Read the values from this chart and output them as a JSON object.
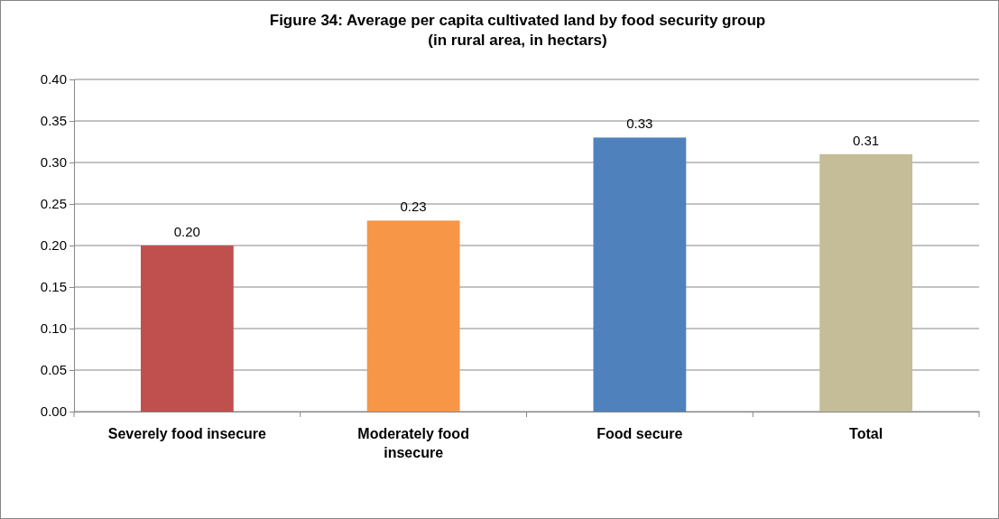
{
  "chart_data": {
    "type": "bar",
    "title": "Figure 34: Average per capita cultivated land by food security group (in rural area, in hectars)",
    "categories": [
      "Severely food insecure",
      "Moderately food insecure",
      "Food secure",
      "Total"
    ],
    "values": [
      0.2,
      0.23,
      0.33,
      0.31
    ],
    "colors": [
      "#c0504d",
      "#f79646",
      "#4f81bd",
      "#c4bd97"
    ],
    "ylim": [
      0,
      0.4
    ],
    "yticks": [
      {
        "value": 0,
        "label": "0.00"
      },
      {
        "value": 0.05,
        "label": "0.05"
      },
      {
        "value": 0.1,
        "label": "0.10"
      },
      {
        "value": 0.15,
        "label": "0.15"
      },
      {
        "value": 0.2,
        "label": "0.20"
      },
      {
        "value": 0.25,
        "label": "0.25"
      },
      {
        "value": 0.3,
        "label": "0.30"
      },
      {
        "value": 0.35,
        "label": "0.35"
      },
      {
        "value": 0.4,
        "label": "0.40"
      }
    ],
    "value_labels": [
      "0.20",
      "0.23",
      "0.33",
      "0.31"
    ],
    "grid": "y"
  }
}
